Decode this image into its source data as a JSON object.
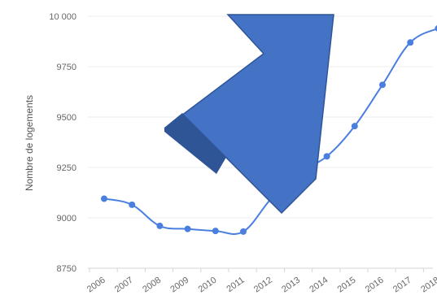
{
  "chart_data": {
    "type": "line",
    "title": "",
    "xlabel": "",
    "ylabel": "Nombre de logements",
    "categories": [
      "2006",
      "2007",
      "2008",
      "2009",
      "2010",
      "2011",
      "2012",
      "2013",
      "2014",
      "2015",
      "2016",
      "2017",
      "2018"
    ],
    "series": [
      {
        "values": [
          9095,
          9065,
          8960,
          8945,
          8935,
          8932,
          9095,
          9225,
          9305,
          9455,
          9660,
          9870,
          9940
        ]
      }
    ],
    "ylim": [
      8750,
      10000
    ],
    "yticks": [
      8750,
      9000,
      9250,
      9500,
      9750,
      10000
    ],
    "ytick_labels": [
      "8750",
      "9000",
      "9250",
      "9500",
      "9750",
      "10 000"
    ],
    "grid": true,
    "legend": "none",
    "line_color": "#4a7fe0",
    "annotation": {
      "kind": "arrow",
      "direction": "up-right",
      "color": "#4472c4",
      "shadow_color": "#2f5597"
    }
  }
}
